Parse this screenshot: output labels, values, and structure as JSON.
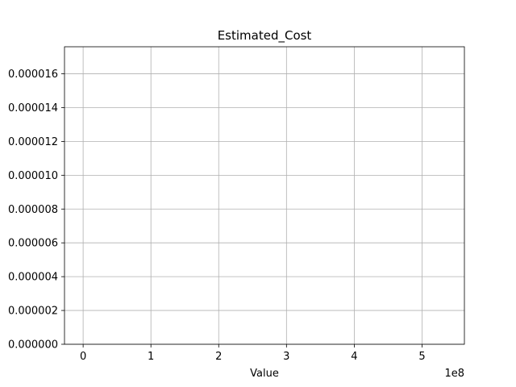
{
  "chart_data": {
    "type": "histogram",
    "title": "Estimated_Cost",
    "xlabel": "Value",
    "ylabel": "",
    "x_offset_label": "1e8",
    "x_ticks": [
      0,
      1,
      2,
      3,
      4,
      5
    ],
    "x_tick_labels": [
      "0",
      "1",
      "2",
      "3",
      "4",
      "5"
    ],
    "y_ticks": [
      0,
      2e-06,
      4e-06,
      6e-06,
      8e-06,
      1e-05,
      1.2e-05,
      1.4e-05,
      1.6e-05
    ],
    "y_tick_labels": [
      "0.000000",
      "0.000002",
      "0.000004",
      "0.000006",
      "0.000008",
      "0.000010",
      "0.000012",
      "0.000014",
      "0.000016"
    ],
    "xlim": [
      -0.275,
      5.625
    ],
    "ylim": [
      0,
      1.76e-05
    ],
    "grid": true,
    "series": [],
    "colors": {
      "grid": "#b0b0b0",
      "axes": "#000000",
      "background": "#ffffff"
    }
  }
}
